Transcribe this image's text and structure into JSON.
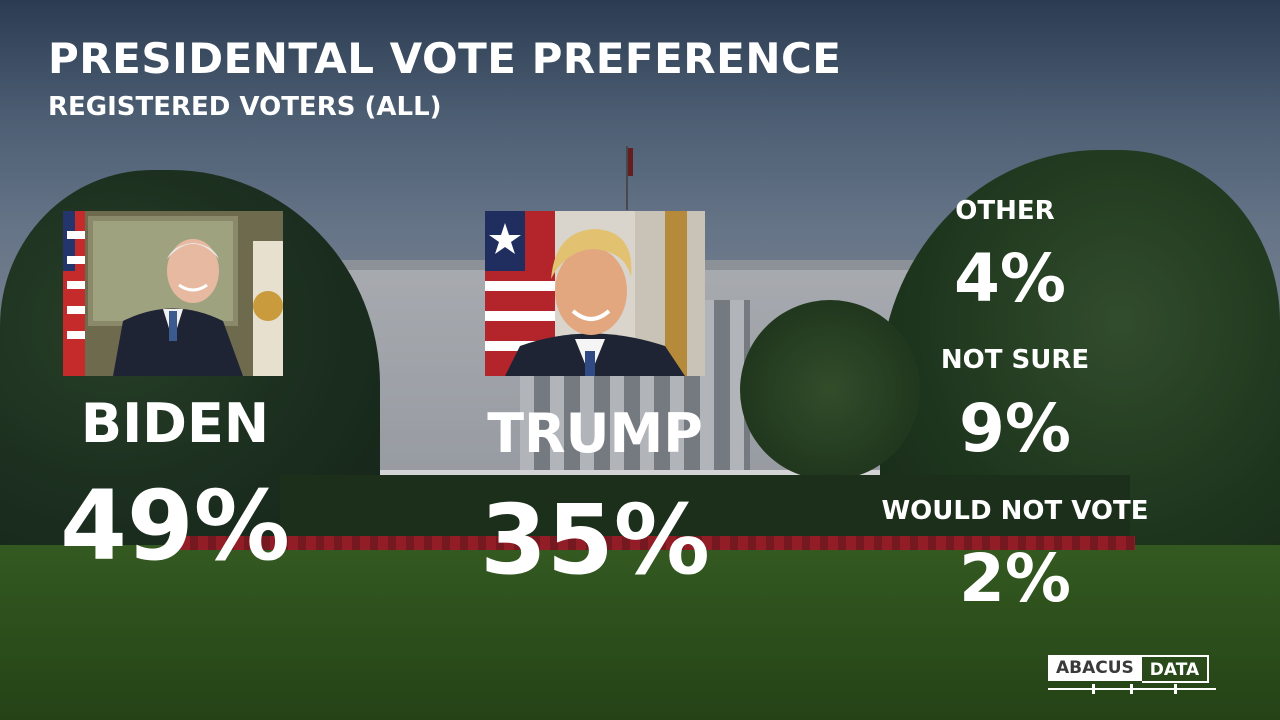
{
  "title": "PRESIDENTAL VOTE PREFERENCE",
  "subtitle": "REGISTERED VOTERS (ALL)",
  "candidates": {
    "biden": {
      "name": "BIDEN",
      "value_label": "49%"
    },
    "trump": {
      "name": "TRUMP",
      "value_label": "35%"
    }
  },
  "others": [
    {
      "label": "OTHER",
      "value_label": "4%"
    },
    {
      "label": "NOT SURE",
      "value_label": "9%"
    },
    {
      "label": "WOULD NOT VOTE",
      "value_label": "2%"
    }
  ],
  "logo": {
    "part1": "ABACUS",
    "part2": "DATA"
  },
  "chart_data": {
    "type": "bar",
    "title": "PRESIDENTAL VOTE PREFERENCE",
    "subtitle": "REGISTERED VOTERS (ALL)",
    "categories": [
      "BIDEN",
      "TRUMP",
      "OTHER",
      "NOT SURE",
      "WOULD NOT VOTE"
    ],
    "values": [
      49,
      35,
      4,
      9,
      2
    ],
    "unit": "%"
  },
  "colors": {
    "text": "#ffffff",
    "lawn": "#345c1c",
    "sky": "#5b6f86"
  }
}
